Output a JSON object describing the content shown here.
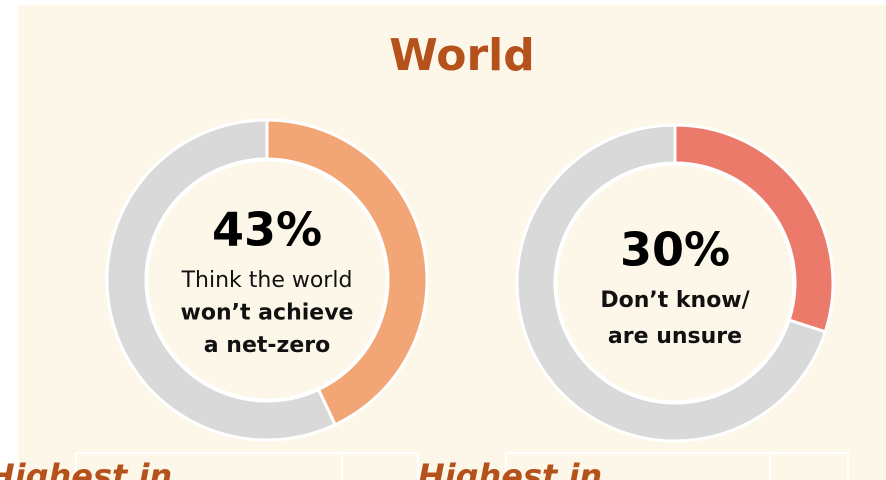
{
  "title": "World",
  "chart_data": [
    {
      "type": "pie",
      "donut": true,
      "values": [
        43,
        57
      ],
      "value_labels": [
        "43%",
        null
      ],
      "colors": [
        "#f2a675",
        "#d9d9d9"
      ],
      "label_lines": [
        {
          "text": "Think the world",
          "bold": false
        },
        {
          "text": "won’t achieve",
          "bold": true
        },
        {
          "text": "a net-zero",
          "bold": true
        }
      ],
      "footer": "Highest in"
    },
    {
      "type": "pie",
      "donut": true,
      "values": [
        30,
        70
      ],
      "value_labels": [
        "30%",
        null
      ],
      "colors": [
        "#ec7a6b",
        "#d9d9d9"
      ],
      "label_lines": [
        {
          "text": "Don’t know/",
          "bold": true
        },
        {
          "text": "are unsure",
          "bold": true
        }
      ],
      "footer": "Highest in"
    }
  ]
}
